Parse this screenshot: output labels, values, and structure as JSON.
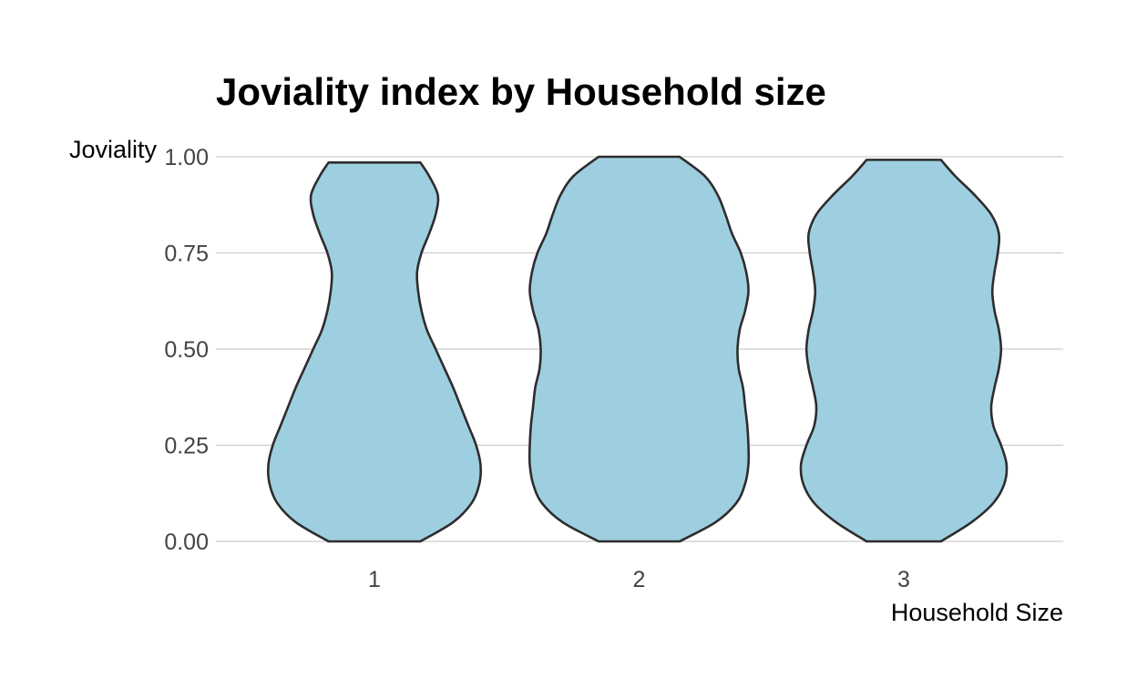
{
  "chart_data": {
    "type": "violin",
    "title": "Joviality index by Household size",
    "xlabel": "Household Size",
    "ylabel": "Joviality",
    "categories": [
      "1",
      "2",
      "3"
    ],
    "ylim": [
      0,
      1
    ],
    "yticks": [
      "0.00",
      "0.25",
      "0.50",
      "0.75",
      "1.00"
    ],
    "ytick_values": [
      0,
      0.25,
      0.5,
      0.75,
      1.0
    ],
    "grid": "horizontal",
    "fill_color": "#9ecfe0",
    "stroke_color": "#2d2d2d",
    "violins": [
      {
        "category": "1",
        "y_min": 0.0,
        "y_max": 0.985,
        "density": [
          [
            0.0,
            0.42
          ],
          [
            0.05,
            0.72
          ],
          [
            0.1,
            0.89
          ],
          [
            0.15,
            0.96
          ],
          [
            0.2,
            0.97
          ],
          [
            0.25,
            0.93
          ],
          [
            0.3,
            0.86
          ],
          [
            0.35,
            0.79
          ],
          [
            0.4,
            0.72
          ],
          [
            0.45,
            0.64
          ],
          [
            0.5,
            0.56
          ],
          [
            0.55,
            0.48
          ],
          [
            0.6,
            0.43
          ],
          [
            0.65,
            0.4
          ],
          [
            0.7,
            0.39
          ],
          [
            0.75,
            0.43
          ],
          [
            0.8,
            0.5
          ],
          [
            0.85,
            0.56
          ],
          [
            0.9,
            0.58
          ],
          [
            0.95,
            0.5
          ],
          [
            0.985,
            0.42
          ]
        ]
      },
      {
        "category": "2",
        "y_min": 0.0,
        "y_max": 1.0,
        "density": [
          [
            0.0,
            0.37
          ],
          [
            0.05,
            0.7
          ],
          [
            0.1,
            0.89
          ],
          [
            0.15,
            0.97
          ],
          [
            0.2,
            1.0
          ],
          [
            0.25,
            1.0
          ],
          [
            0.3,
            0.99
          ],
          [
            0.35,
            0.97
          ],
          [
            0.4,
            0.95
          ],
          [
            0.45,
            0.91
          ],
          [
            0.5,
            0.9
          ],
          [
            0.55,
            0.92
          ],
          [
            0.6,
            0.97
          ],
          [
            0.65,
            1.0
          ],
          [
            0.7,
            0.98
          ],
          [
            0.75,
            0.93
          ],
          [
            0.8,
            0.85
          ],
          [
            0.85,
            0.79
          ],
          [
            0.9,
            0.72
          ],
          [
            0.95,
            0.6
          ],
          [
            1.0,
            0.37
          ]
        ]
      },
      {
        "category": "3",
        "y_min": 0.0,
        "y_max": 0.992,
        "density": [
          [
            0.0,
            0.34
          ],
          [
            0.05,
            0.62
          ],
          [
            0.1,
            0.82
          ],
          [
            0.15,
            0.92
          ],
          [
            0.2,
            0.94
          ],
          [
            0.25,
            0.89
          ],
          [
            0.3,
            0.82
          ],
          [
            0.35,
            0.8
          ],
          [
            0.4,
            0.83
          ],
          [
            0.45,
            0.87
          ],
          [
            0.5,
            0.89
          ],
          [
            0.55,
            0.87
          ],
          [
            0.6,
            0.83
          ],
          [
            0.65,
            0.81
          ],
          [
            0.7,
            0.83
          ],
          [
            0.75,
            0.86
          ],
          [
            0.8,
            0.87
          ],
          [
            0.85,
            0.8
          ],
          [
            0.9,
            0.65
          ],
          [
            0.95,
            0.47
          ],
          [
            0.992,
            0.34
          ]
        ]
      }
    ]
  }
}
